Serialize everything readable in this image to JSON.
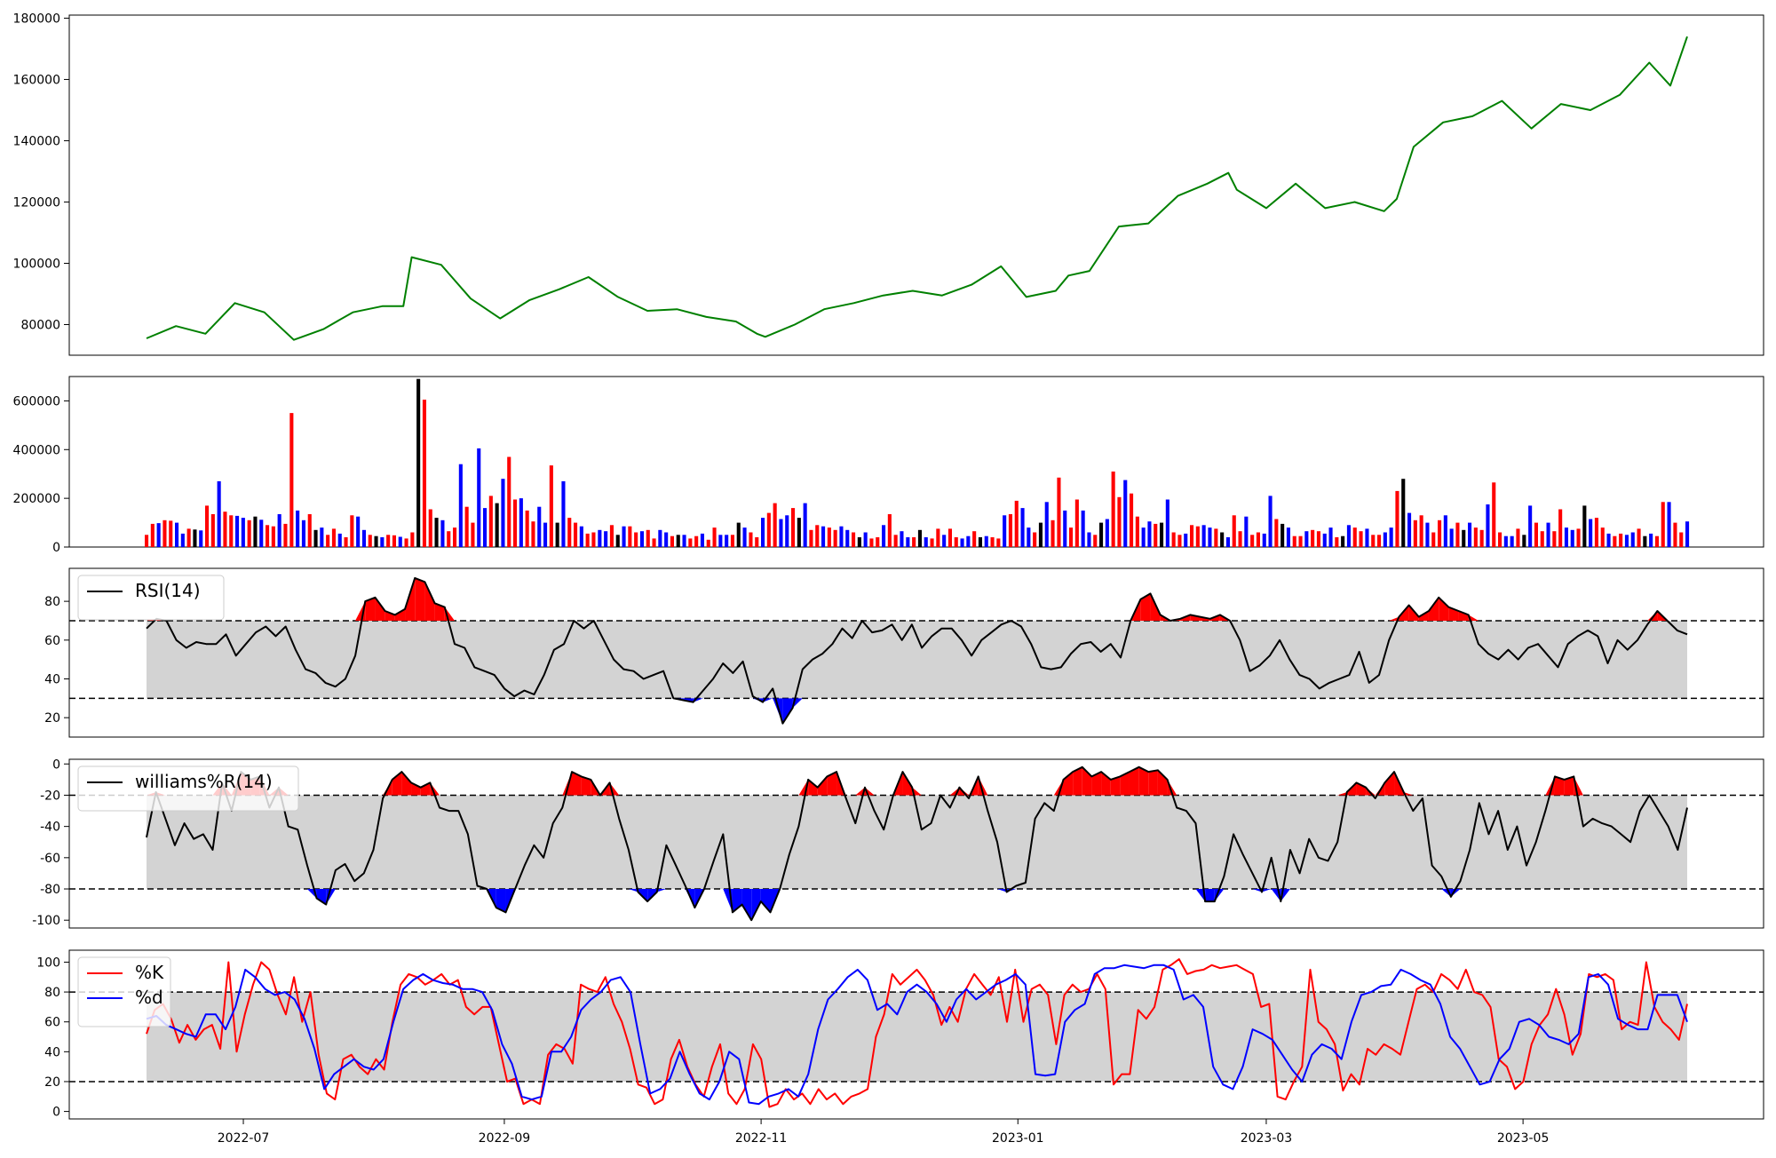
{
  "chart_data": [
    {
      "type": "line",
      "panel": "price",
      "ylim": [
        70000,
        181000
      ],
      "yticks": [
        "80000",
        "100000",
        "120000",
        "140000",
        "160000",
        "180000"
      ],
      "colors": {
        "line": "#008000"
      },
      "grid": false,
      "x": [
        "2022-06-08",
        "2022-06-15",
        "2022-06-22",
        "2022-06-29",
        "2022-07-06",
        "2022-07-13",
        "2022-07-20",
        "2022-07-27",
        "2022-08-03",
        "2022-08-08",
        "2022-08-10",
        "2022-08-17",
        "2022-08-24",
        "2022-08-31",
        "2022-09-07",
        "2022-09-14",
        "2022-09-21",
        "2022-09-28",
        "2022-10-05",
        "2022-10-12",
        "2022-10-19",
        "2022-10-26",
        "2022-10-31",
        "2022-11-02",
        "2022-11-09",
        "2022-11-16",
        "2022-11-23",
        "2022-11-30",
        "2022-12-07",
        "2022-12-14",
        "2022-12-21",
        "2022-12-28",
        "2023-01-03",
        "2023-01-10",
        "2023-01-13",
        "2023-01-18",
        "2023-01-25",
        "2023-02-01",
        "2023-02-08",
        "2023-02-15",
        "2023-02-20",
        "2023-02-22",
        "2023-03-01",
        "2023-03-08",
        "2023-03-15",
        "2023-03-22",
        "2023-03-29",
        "2023-04-01",
        "2023-04-05",
        "2023-04-12",
        "2023-04-19",
        "2023-04-26",
        "2023-05-03",
        "2023-05-10",
        "2023-05-17",
        "2023-05-24",
        "2023-05-31",
        "2023-06-05",
        "2023-06-09"
      ],
      "values": [
        75500,
        79500,
        77000,
        87000,
        84000,
        75000,
        78500,
        84000,
        86000,
        86000,
        102000,
        99500,
        88500,
        82000,
        88000,
        91500,
        95500,
        89000,
        84500,
        85000,
        82500,
        81000,
        77000,
        76000,
        80000,
        85000,
        87000,
        89500,
        91000,
        89500,
        93000,
        99000,
        89000,
        91000,
        96000,
        97500,
        112000,
        113000,
        122000,
        126000,
        129500,
        124000,
        118000,
        126000,
        118000,
        120000,
        117000,
        121000,
        138000,
        146000,
        148000,
        153000,
        144000,
        152000,
        150000,
        155000,
        165500,
        158000,
        174000
      ],
      "series": []
    },
    {
      "type": "bar",
      "panel": "volume",
      "ylim": [
        0,
        700000
      ],
      "yticks": [
        "0",
        "200000",
        "400000",
        "600000"
      ],
      "colors": {
        "up": "#ff0000",
        "down": "#0000ff",
        "flat": "#000000"
      },
      "values": [
        50000,
        95000,
        98000,
        110000,
        108000,
        100000,
        55000,
        75000,
        72000,
        68000,
        170000,
        135000,
        270000,
        145000,
        130000,
        128000,
        120000,
        110000,
        125000,
        112000,
        90000,
        85000,
        135000,
        95000,
        550000,
        150000,
        110000,
        135000,
        70000,
        80000,
        50000,
        75000,
        55000,
        40000,
        130000,
        125000,
        70000,
        50000,
        45000,
        40000,
        50000,
        48000,
        42000,
        35000,
        60000,
        690000,
        605000,
        155000,
        120000,
        110000,
        65000,
        80000,
        340000,
        165000,
        100000,
        405000,
        160000,
        210000,
        180000,
        280000,
        370000,
        195000,
        200000,
        150000,
        105000,
        165000,
        100000,
        335000,
        100000,
        270000,
        120000,
        100000,
        85000,
        55000,
        60000,
        70000,
        65000,
        90000,
        50000,
        85000,
        85000,
        60000,
        65000,
        70000,
        35000,
        70000,
        60000,
        45000,
        50000,
        50000,
        35000,
        45000,
        55000,
        30000,
        80000,
        50000,
        50000,
        50000,
        100000,
        80000,
        60000,
        40000,
        120000,
        140000,
        180000,
        115000,
        130000,
        160000,
        120000,
        180000,
        70000,
        90000,
        85000,
        80000,
        70000,
        85000,
        70000,
        60000,
        40000,
        60000,
        35000,
        40000,
        90000,
        135000,
        50000,
        65000,
        40000,
        40000,
        70000,
        40000,
        35000,
        75000,
        50000,
        75000,
        40000,
        35000,
        45000,
        65000,
        40000,
        45000,
        40000,
        35000,
        130000,
        135000,
        190000,
        160000,
        80000,
        60000,
        100000,
        185000,
        110000,
        285000,
        150000,
        80000,
        195000,
        150000,
        60000,
        50000,
        100000,
        115000,
        310000,
        205000,
        275000,
        220000,
        125000,
        80000,
        105000,
        95000,
        100000,
        195000,
        60000,
        50000,
        55000,
        90000,
        85000,
        90000,
        80000,
        75000,
        60000,
        40000,
        130000,
        65000,
        125000,
        50000,
        60000,
        55000,
        210000,
        115000,
        95000,
        80000,
        45000,
        45000,
        65000,
        70000,
        65000,
        55000,
        80000,
        40000,
        45000,
        90000,
        80000,
        65000,
        75000,
        50000,
        50000,
        60000,
        80000,
        230000,
        280000,
        140000,
        110000,
        130000,
        100000,
        60000,
        110000,
        130000,
        75000,
        100000,
        70000,
        100000,
        80000,
        70000,
        175000,
        265000,
        60000,
        45000,
        45000,
        75000,
        50000,
        170000,
        100000,
        65000,
        100000,
        65000,
        155000,
        80000,
        70000,
        75000,
        170000,
        115000,
        120000,
        80000,
        55000,
        45000,
        55000,
        50000,
        60000,
        75000,
        45000,
        55000,
        45000,
        185000,
        185000,
        100000,
        60000,
        105000
      ],
      "bar_colors": "pattern"
    },
    {
      "type": "line",
      "panel": "rsi",
      "legend": [
        "RSI(14)"
      ],
      "legend_position": "upper-left",
      "ylim": [
        10,
        97
      ],
      "yticks": [
        "20",
        "40",
        "60",
        "80"
      ],
      "band": [
        30,
        70
      ],
      "colors": {
        "line": "#000000",
        "band": "#d3d3d3",
        "overbought": "#ff0000",
        "oversold": "#0000ff"
      },
      "values": [
        66,
        71,
        70,
        60,
        56,
        59,
        58,
        58,
        63,
        52,
        58,
        64,
        67,
        62,
        67,
        55,
        45,
        43,
        38,
        36,
        40,
        52,
        80,
        82,
        75,
        73,
        76,
        92,
        90,
        79,
        77,
        58,
        56,
        46,
        44,
        42,
        35,
        31,
        34,
        32,
        42,
        55,
        58,
        70,
        66,
        70,
        60,
        50,
        45,
        44,
        40,
        42,
        44,
        30,
        29,
        28,
        34,
        40,
        48,
        43,
        49,
        31,
        28,
        35,
        17,
        25,
        45,
        50,
        53,
        58,
        66,
        61,
        70,
        64,
        65,
        68,
        60,
        68,
        56,
        62,
        66,
        66,
        60,
        52,
        60,
        64,
        68,
        70,
        67,
        58,
        46,
        45,
        46,
        53,
        58,
        59,
        54,
        58,
        51,
        70,
        81,
        84,
        73,
        70,
        71,
        73,
        72,
        71,
        73,
        70,
        60,
        44,
        47,
        52,
        60,
        50,
        42,
        40,
        35,
        38,
        40,
        42,
        54,
        38,
        42,
        60,
        72,
        78,
        72,
        75,
        82,
        77,
        75,
        73,
        58,
        53,
        50,
        55,
        50,
        56,
        58,
        52,
        46,
        58,
        62,
        65,
        62,
        48,
        60,
        55,
        60,
        68,
        75,
        70,
        65,
        63
      ]
    },
    {
      "type": "line",
      "panel": "williams",
      "legend": [
        "williams%R(14)"
      ],
      "legend_position": "upper-left",
      "ylim": [
        -105,
        3
      ],
      "yticks": [
        "0",
        "-20",
        "-40",
        "-60",
        "-80",
        "-100"
      ],
      "band": [
        -80,
        -20
      ],
      "colors": {
        "line": "#000000",
        "band": "#d3d3d3",
        "overbought": "#ff0000",
        "oversold": "#0000ff"
      },
      "values": [
        -47,
        -18,
        -35,
        -52,
        -38,
        -48,
        -45,
        -55,
        -12,
        -30,
        -5,
        -10,
        -8,
        -28,
        -15,
        -40,
        -42,
        -65,
        -86,
        -90,
        -68,
        -64,
        -75,
        -70,
        -55,
        -22,
        -10,
        -5,
        -12,
        -15,
        -12,
        -28,
        -30,
        -30,
        -45,
        -78,
        -80,
        -92,
        -95,
        -80,
        -65,
        -52,
        -60,
        -38,
        -28,
        -5,
        -8,
        -10,
        -20,
        -12,
        -35,
        -55,
        -82,
        -88,
        -82,
        -52,
        -65,
        -78,
        -92,
        -80,
        -62,
        -45,
        -95,
        -90,
        -100,
        -88,
        -95,
        -80,
        -58,
        -40,
        -10,
        -15,
        -8,
        -5,
        -22,
        -38,
        -15,
        -30,
        -42,
        -20,
        -5,
        -15,
        -42,
        -38,
        -20,
        -28,
        -15,
        -22,
        -8,
        -30,
        -50,
        -82,
        -78,
        -76,
        -35,
        -25,
        -30,
        -10,
        -5,
        -2,
        -8,
        -5,
        -10,
        -8,
        -5,
        -2,
        -5,
        -4,
        -10,
        -28,
        -30,
        -38,
        -88,
        -88,
        -72,
        -45,
        -58,
        -70,
        -82,
        -60,
        -88,
        -55,
        -70,
        -48,
        -60,
        -62,
        -50,
        -18,
        -12,
        -15,
        -22,
        -12,
        -5,
        -18,
        -30,
        -22,
        -65,
        -72,
        -85,
        -75,
        -55,
        -25,
        -45,
        -30,
        -55,
        -40,
        -65,
        -50,
        -30,
        -8,
        -10,
        -8,
        -40,
        -35,
        -38,
        -40,
        -45,
        -50,
        -30,
        -20,
        -30,
        -40,
        -55,
        -28
      ]
    },
    {
      "type": "line",
      "panel": "stochastic",
      "legend": [
        "%K",
        "%d"
      ],
      "legend_position": "upper-left",
      "ylim": [
        -5,
        108
      ],
      "yticks": [
        "0",
        "20",
        "40",
        "60",
        "80",
        "100"
      ],
      "band": [
        20,
        80
      ],
      "colors": {
        "k": "#ff0000",
        "d": "#0000ff",
        "band": "#d3d3d3"
      },
      "series": [
        {
          "name": "%K",
          "values": [
            52,
            68,
            72,
            62,
            46,
            58,
            48,
            55,
            58,
            42,
            100,
            40,
            65,
            85,
            100,
            95,
            78,
            65,
            90,
            60,
            80,
            38,
            12,
            8,
            35,
            38,
            30,
            25,
            35,
            28,
            60,
            85,
            92,
            90,
            85,
            88,
            92,
            85,
            88,
            70,
            65,
            70,
            70,
            45,
            20,
            22,
            5,
            8,
            5,
            38,
            45,
            42,
            32,
            85,
            82,
            80,
            90,
            72,
            60,
            42,
            18,
            16,
            5,
            8,
            35,
            48,
            30,
            18,
            10,
            30,
            45,
            12,
            5,
            15,
            45,
            35,
            3,
            5,
            15,
            8,
            12,
            5,
            15,
            8,
            12,
            5,
            10,
            12,
            15,
            50,
            65,
            92,
            85,
            90,
            95,
            88,
            78,
            58,
            70,
            60,
            82,
            92,
            85,
            78,
            90,
            60,
            95,
            60,
            82,
            85,
            78,
            45,
            78,
            85,
            80,
            82,
            92,
            82,
            18,
            25,
            25,
            68,
            62,
            70,
            95,
            98,
            102,
            92,
            94,
            95,
            98,
            96,
            97,
            98,
            95,
            92,
            70,
            72,
            10,
            8,
            20,
            30,
            95,
            60,
            55,
            45,
            14,
            25,
            18,
            42,
            38,
            45,
            42,
            38,
            60,
            82,
            85,
            80,
            92,
            88,
            82,
            95,
            80,
            78,
            70,
            35,
            30,
            15,
            20,
            45,
            58,
            65,
            82,
            65,
            38,
            52,
            92,
            90,
            92,
            88,
            55,
            60,
            58,
            100,
            70,
            60,
            55,
            48,
            72
          ]
        },
        {
          "name": "%d",
          "values": [
            62,
            64,
            58,
            55,
            52,
            50,
            65,
            65,
            55,
            70,
            95,
            90,
            82,
            78,
            80,
            75,
            62,
            42,
            15,
            25,
            30,
            35,
            30,
            28,
            35,
            60,
            82,
            88,
            92,
            88,
            86,
            85,
            82,
            82,
            80,
            68,
            45,
            32,
            10,
            8,
            10,
            40,
            40,
            50,
            68,
            75,
            80,
            88,
            90,
            80,
            45,
            12,
            15,
            22,
            40,
            25,
            12,
            8,
            20,
            40,
            35,
            6,
            5,
            10,
            12,
            15,
            10,
            25,
            55,
            75,
            82,
            90,
            95,
            88,
            68,
            72,
            65,
            80,
            85,
            80,
            72,
            60,
            75,
            82,
            75,
            80,
            85,
            88,
            92,
            85,
            25,
            24,
            25,
            60,
            68,
            72,
            92,
            96,
            96,
            98,
            97,
            96,
            98,
            98,
            95,
            75,
            78,
            70,
            30,
            18,
            15,
            30,
            55,
            52,
            48,
            38,
            28,
            20,
            38,
            45,
            42,
            35,
            60,
            78,
            80,
            84,
            85,
            95,
            92,
            88,
            85,
            72,
            50,
            42,
            30,
            18,
            20,
            35,
            42,
            60,
            62,
            58,
            50,
            48,
            45,
            52,
            90,
            92,
            85,
            62,
            58,
            55,
            55,
            78,
            78,
            78,
            60
          ]
        }
      ]
    }
  ],
  "x_axis": {
    "ticks": [
      "2022-07",
      "2022-09",
      "2022-11",
      "2023-01",
      "2023-03",
      "2023-05"
    ]
  }
}
